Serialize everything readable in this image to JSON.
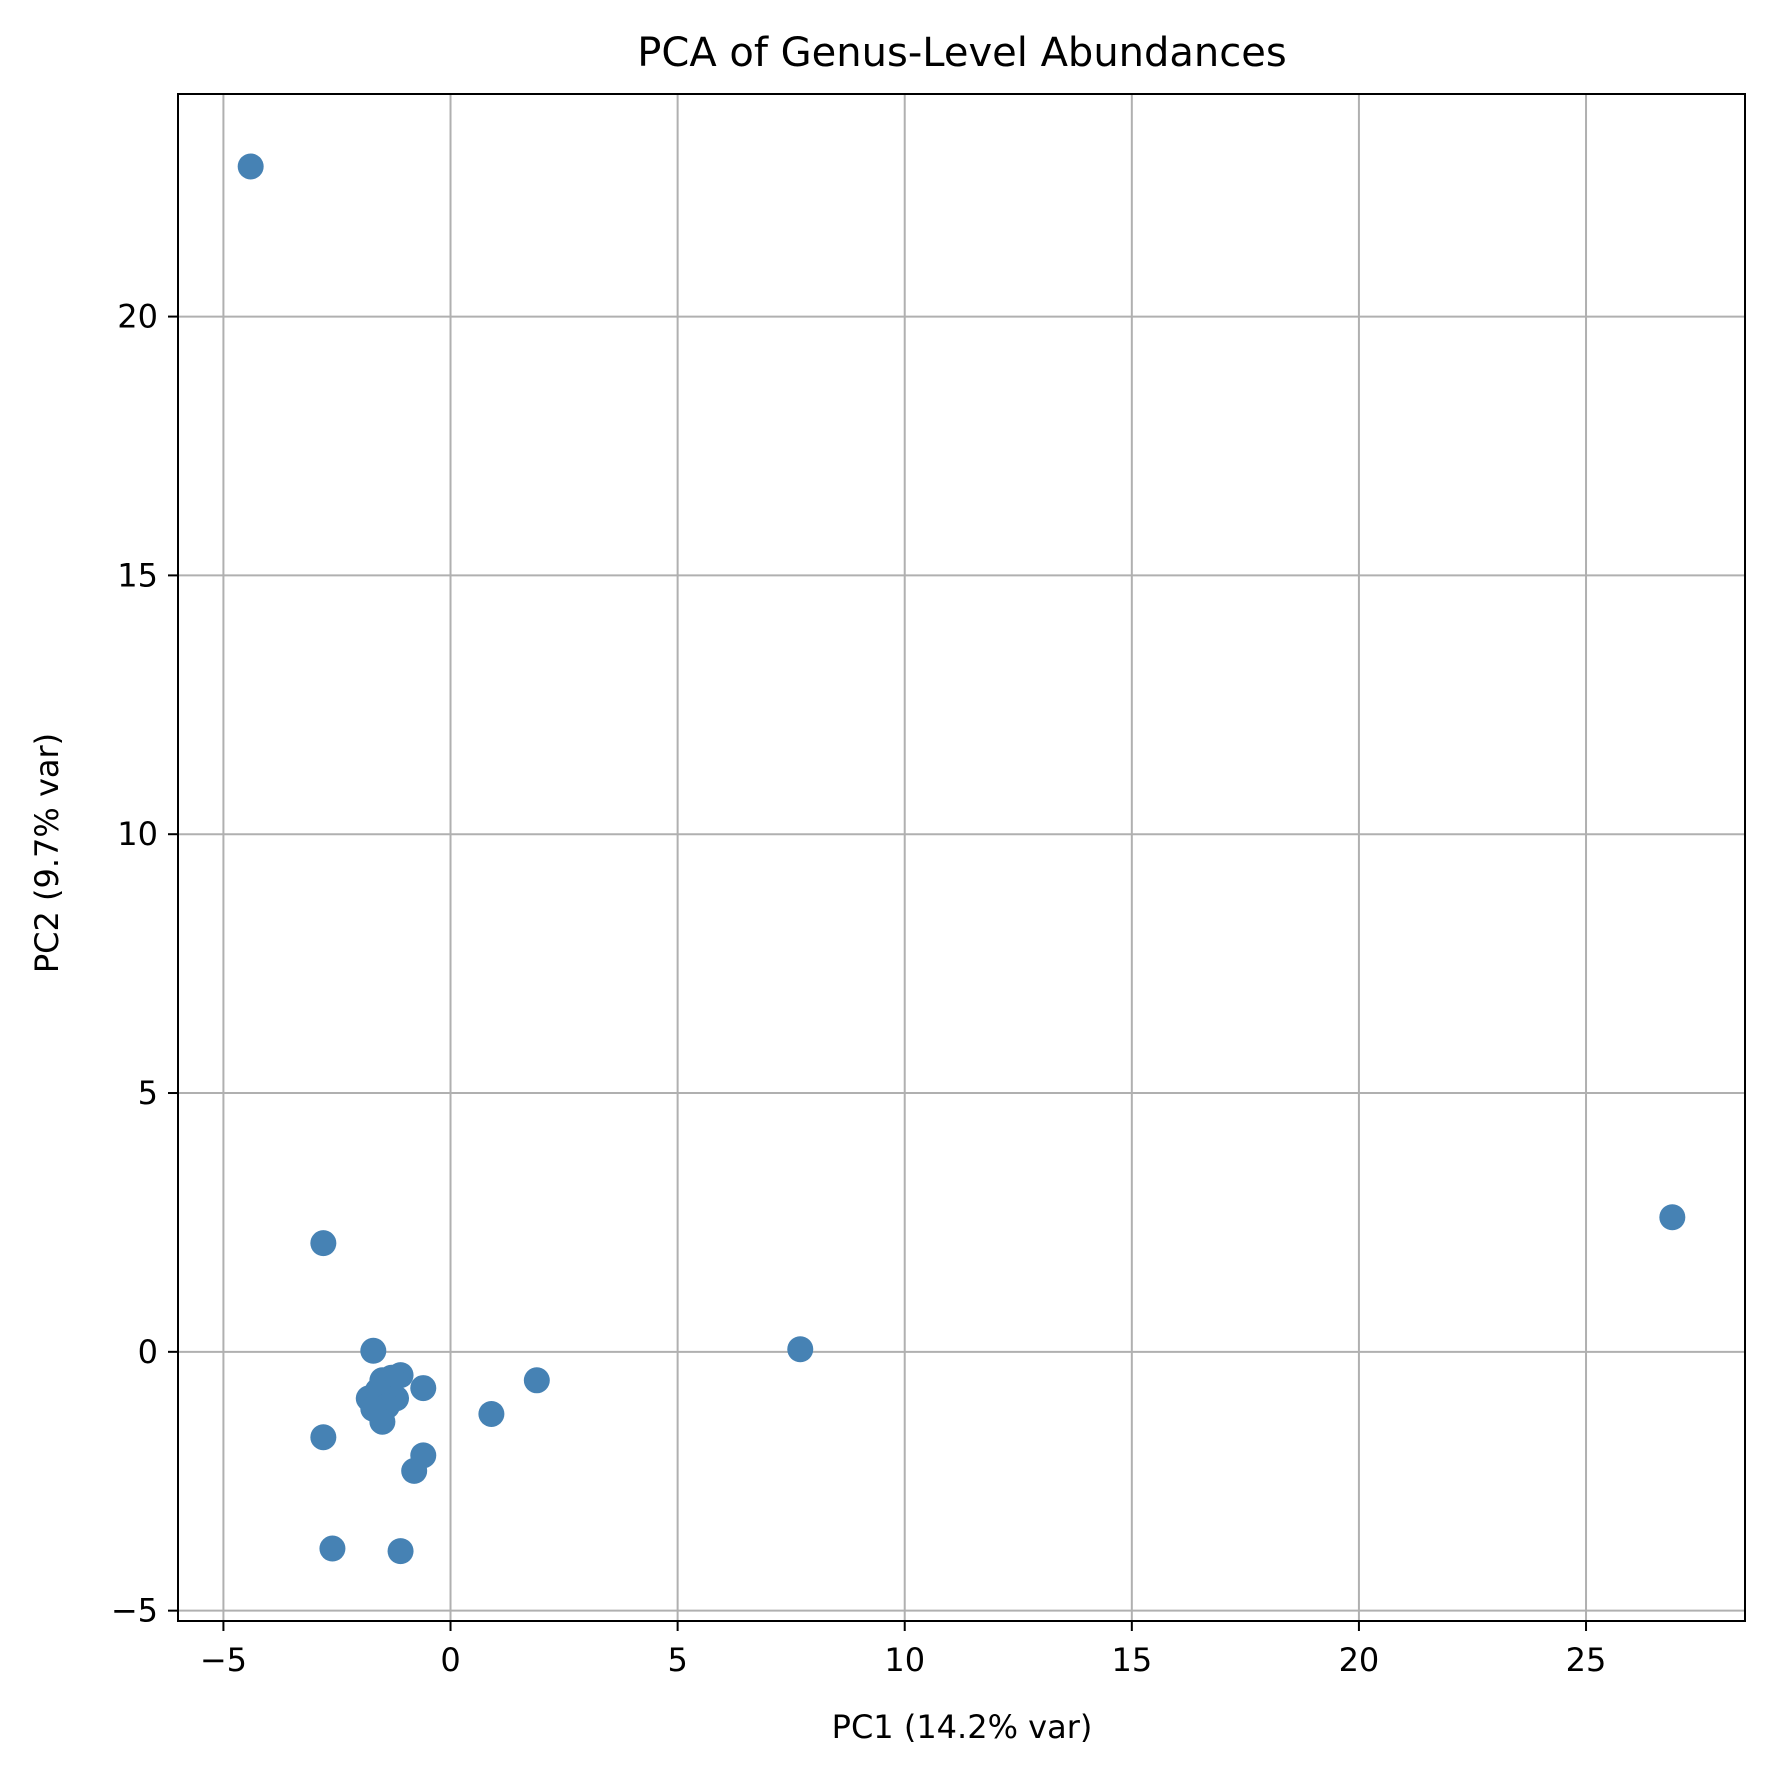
{
  "chart_data": {
    "type": "scatter",
    "title": "PCA of Genus-Level Abundances",
    "xlabel": "PC1 (14.2% var)",
    "ylabel": "PC2 (9.7% var)",
    "xlim": [
      -6.0,
      28.5
    ],
    "ylim": [
      -5.2,
      24.3
    ],
    "xticks": [
      -5,
      0,
      5,
      10,
      15,
      20,
      25
    ],
    "yticks": [
      -5,
      0,
      5,
      10,
      15,
      20
    ],
    "xtick_labels": [
      "−5",
      "0",
      "5",
      "10",
      "15",
      "20",
      "25"
    ],
    "ytick_labels": [
      "−5",
      "0",
      "5",
      "10",
      "15",
      "20"
    ],
    "grid": true,
    "color": "#4682b4",
    "series": [
      {
        "x": [
          -4.4,
          26.9,
          -2.8,
          7.7,
          -1.7,
          -1.1,
          -1.5,
          -1.3,
          -0.6,
          -1.8,
          -1.6,
          -1.2,
          -1.4,
          -1.5,
          -1.7,
          1.9,
          0.9,
          -2.8,
          -0.6,
          -0.8,
          -2.6,
          -1.1
        ],
        "y": [
          22.9,
          2.6,
          2.1,
          0.05,
          0.02,
          -0.45,
          -0.55,
          -0.5,
          -0.7,
          -0.9,
          -0.75,
          -0.9,
          -1.05,
          -1.35,
          -1.1,
          -0.55,
          -1.2,
          -1.65,
          -2.0,
          -2.3,
          -3.8,
          -3.85
        ]
      }
    ]
  }
}
